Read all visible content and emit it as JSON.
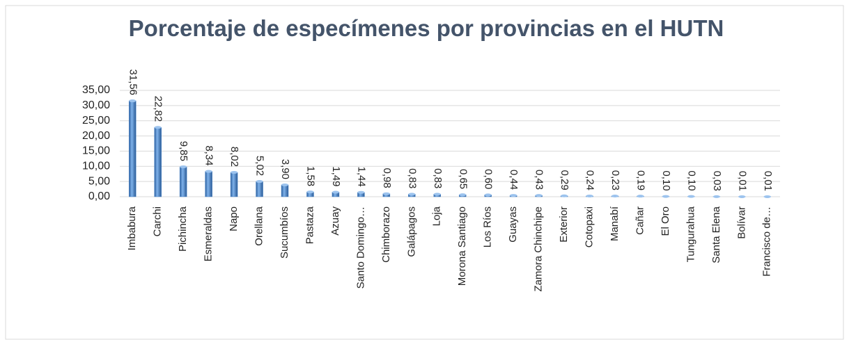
{
  "chart_data": {
    "type": "bar",
    "title": "Porcentaje de especímenes por provincias en el HUTN",
    "categories": [
      "Imbabura",
      "Carchi",
      "Pichincha",
      "Esmeraldas",
      "Napo",
      "Orellana",
      "Sucumbíos",
      "Pastaza",
      "Azuay",
      "Santo Domingo…",
      "Chimborazo",
      "Galápagos",
      "Loja",
      "Morona Santiago",
      "Los Ríos",
      "Guayas",
      "Zamora Chinchipe",
      "Exterior",
      "Cotopaxi",
      "Manabí",
      "Cañar",
      "El Oro",
      "Tungurahua",
      "Santa Elena",
      "Bolívar",
      "Francisco de…"
    ],
    "values": [
      31.56,
      22.82,
      9.85,
      8.34,
      8.02,
      5.02,
      3.9,
      1.58,
      1.49,
      1.44,
      0.98,
      0.83,
      0.83,
      0.65,
      0.6,
      0.44,
      0.43,
      0.29,
      0.24,
      0.23,
      0.19,
      0.1,
      0.1,
      0.03,
      0.01,
      0.01
    ],
    "value_labels": [
      "31,56",
      "22,82",
      "9,85",
      "8,34",
      "8,02",
      "5,02",
      "3,90",
      "1,58",
      "1,49",
      "1,44",
      "0,98",
      "0,83",
      "0,83",
      "0,65",
      "0,60",
      "0,44",
      "0,43",
      "0,29",
      "0,24",
      "0,23",
      "0,19",
      "0,10",
      "0,10",
      "0,03",
      "0,01",
      "0,01"
    ],
    "color": "#4a86c8",
    "ylim": [
      0,
      35
    ],
    "yticks": [
      {
        "value": 0,
        "label": "0,00"
      },
      {
        "value": 5,
        "label": "5,00"
      },
      {
        "value": 10,
        "label": "10,00"
      },
      {
        "value": 15,
        "label": "15,00"
      },
      {
        "value": 20,
        "label": "20,00"
      },
      {
        "value": 25,
        "label": "25,00"
      },
      {
        "value": 30,
        "label": "30,00"
      },
      {
        "value": 35,
        "label": "35,00"
      }
    ],
    "grid": true
  }
}
